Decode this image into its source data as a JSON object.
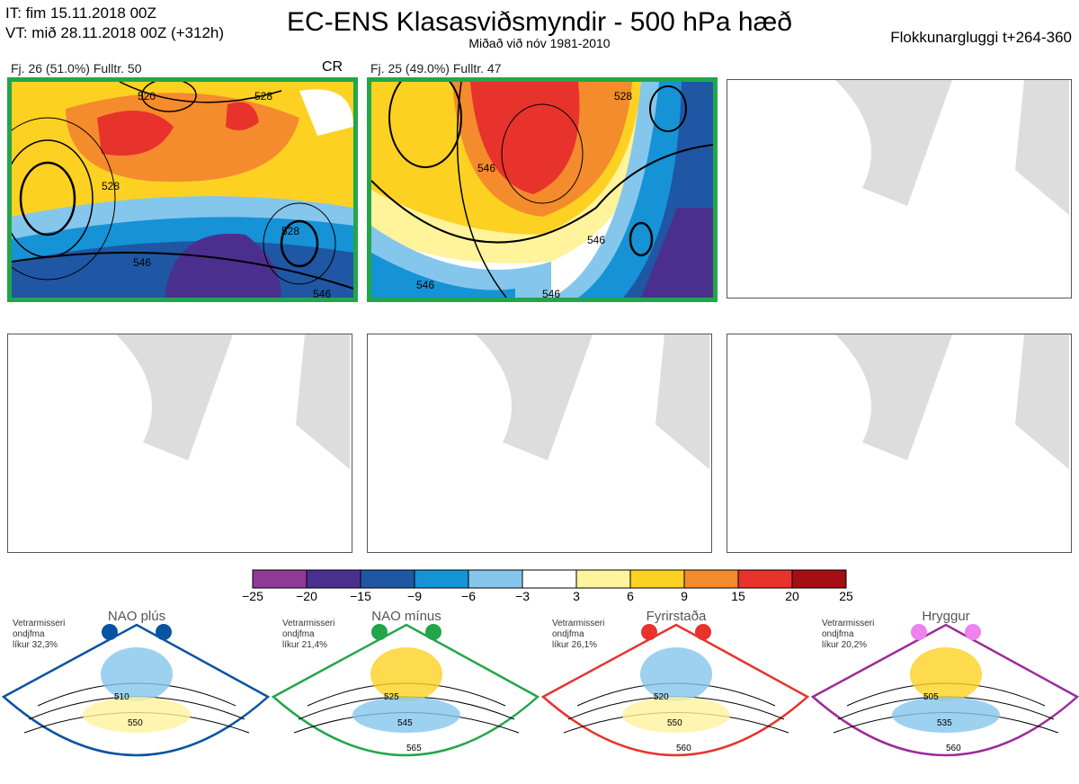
{
  "header": {
    "it": "IT: fim 15.11.2018 00Z",
    "vt": "VT: mið 28.11.2018 00Z  (+312h)",
    "title": "EC-ENS Klasasviðsmyndir - 500 hPa hæð",
    "subtitle": "Miðað við nóv 1981-2010",
    "window": "Flokkunargluggi t+264-360"
  },
  "clusters": [
    {
      "label": "Fj. 26 (51.0%)   Fulltr. 50",
      "tag": "CR",
      "contours": [
        "528",
        "520",
        "528",
        "528",
        "546",
        "546"
      ]
    },
    {
      "label": "Fj. 25 (49.0%)   Fulltr. 47",
      "tag": "",
      "contours": [
        "546",
        "528",
        "546",
        "546",
        "546"
      ]
    }
  ],
  "colorbar": {
    "ticks": [
      "−25",
      "−20",
      "−15",
      "−9",
      "−6",
      "−3",
      "3",
      "6",
      "9",
      "15",
      "20",
      "25"
    ],
    "colors": [
      "#8e3a96",
      "#4b2f8f",
      "#1f57a4",
      "#1593d6",
      "#85c6ec",
      "#ffffff",
      "#fff39c",
      "#fcd122",
      "#f48b2c",
      "#e8322c",
      "#a30f14"
    ]
  },
  "regimes": [
    {
      "name": "NAO plús",
      "info": [
        "Vetrarmisseri",
        "ondjfma",
        "líkur 32,3%"
      ],
      "color": "#0a53a2",
      "labels": [
        "510",
        "550"
      ]
    },
    {
      "name": "NAO mínus",
      "info": [
        "Vetrarmisseri",
        "ondjfma",
        "líkur 21,4%"
      ],
      "color": "#22a64a",
      "labels": [
        "525",
        "545",
        "565"
      ]
    },
    {
      "name": "Fyrirstaða",
      "info": [
        "Vetrarmisseri",
        "ondjfma",
        "líkur 26,1%"
      ],
      "color": "#e8322c",
      "labels": [
        "520",
        "550",
        "560"
      ]
    },
    {
      "name": "Hryggur",
      "info": [
        "Vetrarmisseri",
        "ondjfma",
        "líkur 20,2%"
      ],
      "color": "#9b2c98",
      "dot": "#ee82ee",
      "labels": [
        "505",
        "535",
        "560"
      ]
    }
  ]
}
